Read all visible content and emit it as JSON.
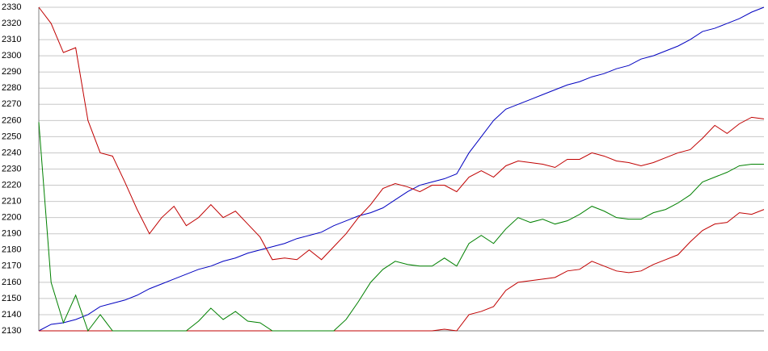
{
  "chart_data": {
    "type": "line",
    "ylim": [
      2130,
      2330
    ],
    "yticks": [
      2130,
      2140,
      2150,
      2160,
      2170,
      2180,
      2190,
      2200,
      2210,
      2220,
      2230,
      2240,
      2250,
      2260,
      2270,
      2280,
      2290,
      2300,
      2310,
      2320,
      2330
    ],
    "grid": true,
    "series": [
      {
        "color": "#0000c0",
        "values": [
          2130,
          2134,
          2135,
          2137,
          2140,
          2145,
          2147,
          2149,
          2152,
          2156,
          2159,
          2162,
          2165,
          2168,
          2170,
          2173,
          2175,
          2178,
          2180,
          2182,
          2184,
          2187,
          2189,
          2191,
          2195,
          2198,
          2201,
          2203,
          2206,
          2211,
          2216,
          2220,
          2222,
          2224,
          2227,
          2240,
          2250,
          2260,
          2267,
          2270,
          2273,
          2276,
          2279,
          2282,
          2284,
          2287,
          2289,
          2292,
          2294,
          2298,
          2300,
          2303,
          2306,
          2310,
          2315,
          2317,
          2320,
          2323,
          2327,
          2330
        ]
      },
      {
        "color": "#c00000",
        "values": [
          2330,
          2320,
          2302,
          2305,
          2260,
          2240,
          2238,
          2222,
          2205,
          2190,
          2200,
          2207,
          2195,
          2200,
          2208,
          2200,
          2204,
          2196,
          2188,
          2174,
          2175,
          2174,
          2180,
          2174,
          2182,
          2190,
          2200,
          2208,
          2218,
          2221,
          2219,
          2216,
          2220,
          2220,
          2216,
          2225,
          2229,
          2225,
          2232,
          2235,
          2234,
          2233,
          2231,
          2236,
          2236,
          2240,
          2238,
          2235,
          2234,
          2232,
          2234,
          2237,
          2240,
          2242,
          2249,
          2257,
          2252,
          2258,
          2262,
          2261
        ]
      },
      {
        "color": "#c00000",
        "values": [
          2130,
          2130,
          2130,
          2130,
          2130,
          2130,
          2130,
          2130,
          2130,
          2130,
          2130,
          2130,
          2130,
          2130,
          2130,
          2130,
          2130,
          2130,
          2130,
          2130,
          2130,
          2130,
          2130,
          2130,
          2130,
          2130,
          2130,
          2130,
          2130,
          2130,
          2130,
          2130,
          2130,
          2131,
          2130,
          2140,
          2142,
          2145,
          2155,
          2160,
          2161,
          2162,
          2163,
          2167,
          2168,
          2173,
          2170,
          2167,
          2166,
          2167,
          2171,
          2174,
          2177,
          2185,
          2192,
          2196,
          2197,
          2203,
          2202,
          2205
        ]
      },
      {
        "color": "#008000",
        "values": [
          2259,
          2160,
          2135,
          2152,
          2130,
          2140,
          2130,
          2130,
          2130,
          2130,
          2130,
          2130,
          2130,
          2136,
          2144,
          2137,
          2142,
          2136,
          2135,
          2130,
          2130,
          2130,
          2130,
          2130,
          2130,
          2137,
          2148,
          2160,
          2168,
          2173,
          2171,
          2170,
          2170,
          2175,
          2170,
          2184,
          2189,
          2184,
          2193,
          2200,
          2197,
          2199,
          2196,
          2198,
          2202,
          2207,
          2204,
          2200,
          2199,
          2199,
          2203,
          2205,
          2209,
          2214,
          2222,
          2225,
          2228,
          2232,
          2233,
          2233
        ]
      }
    ]
  }
}
